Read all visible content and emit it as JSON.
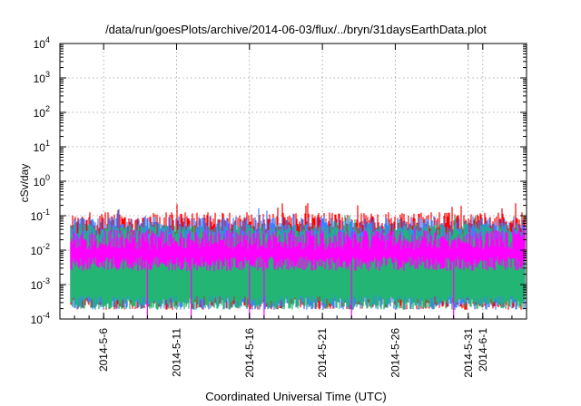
{
  "chart_data": {
    "type": "area",
    "title": "/data/run/goesPlots/archive/2014-06-03/flux/../bryn/31daysEarthData.plot",
    "xlabel": "Coordinated Universal Time (UTC)",
    "ylabel": "cSv/day",
    "yscale": "log",
    "ylim": [
      0.0001,
      10000
    ],
    "xlim": [
      "2014-05-03",
      "2014-06-04"
    ],
    "yticks": [
      {
        "base": "10",
        "exp": "-4"
      },
      {
        "base": "10",
        "exp": "-3"
      },
      {
        "base": "10",
        "exp": "-2"
      },
      {
        "base": "10",
        "exp": "-1"
      },
      {
        "base": "10",
        "exp": "0"
      },
      {
        "base": "10",
        "exp": "1"
      },
      {
        "base": "10",
        "exp": "2"
      },
      {
        "base": "10",
        "exp": "3"
      },
      {
        "base": "10",
        "exp": "4"
      }
    ],
    "xticks": [
      {
        "label": "2014-5-6",
        "date": "2014-05-06"
      },
      {
        "label": "2014-5-11",
        "date": "2014-05-11"
      },
      {
        "label": "2014-5-16",
        "date": "2014-05-16"
      },
      {
        "label": "2014-5-21",
        "date": "2014-05-21"
      },
      {
        "label": "2014-5-26",
        "date": "2014-05-26"
      },
      {
        "label": "2014-5-31",
        "date": "2014-05-31"
      },
      {
        "label": "2014-6-1",
        "date": "2014-06-01"
      }
    ],
    "grid": true,
    "series": [
      {
        "color": "#ff0000",
        "lower": 0.0003,
        "upper": 0.065
      },
      {
        "color": "#3f7fff",
        "lower": 0.0003,
        "upper": 0.05
      },
      {
        "color": "#22b573",
        "lower": 0.0003,
        "upper": 0.03
      },
      {
        "color": "#ff00ff",
        "lower": 0.004,
        "upper": 0.02
      }
    ],
    "dropouts": [
      "2014-05-09",
      "2014-05-12",
      "2014-05-12",
      "2014-05-16",
      "2014-05-17",
      "2014-05-23",
      "2014-05-30"
    ]
  }
}
